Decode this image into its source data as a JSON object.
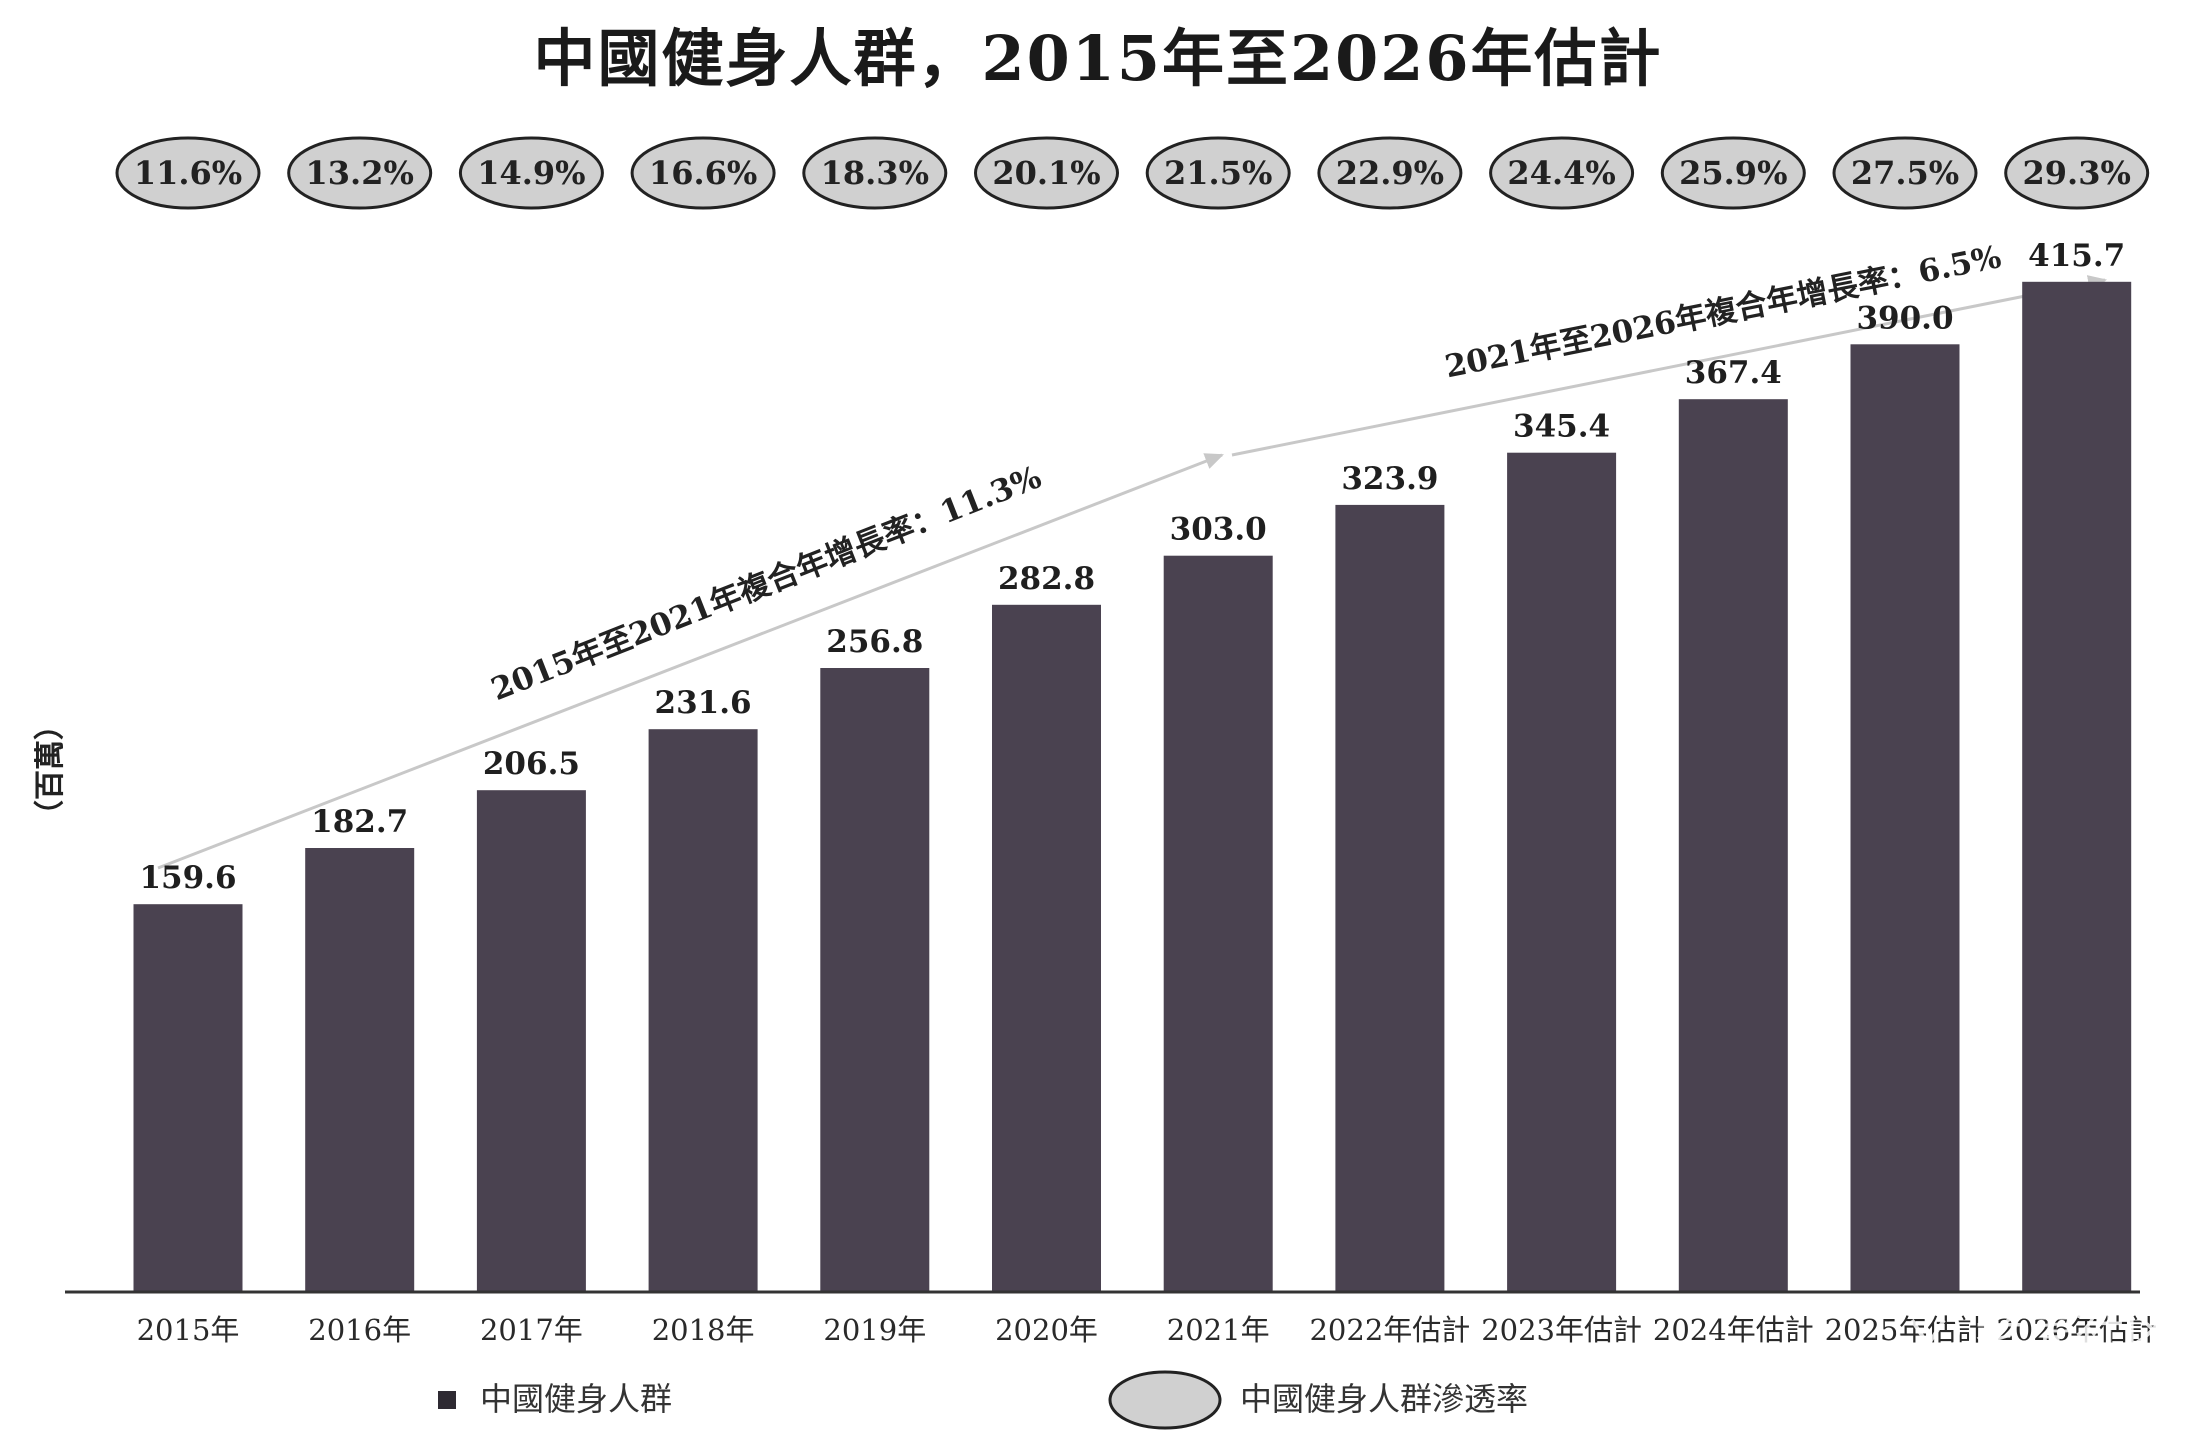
{
  "chart_data": {
    "type": "bar",
    "title": "中國健身人群，2015年至2026年估計",
    "ylabel": "（百萬）",
    "categories": [
      "2015年",
      "2016年",
      "2017年",
      "2018年",
      "2019年",
      "2020年",
      "2021年",
      "2022年估計",
      "2023年估計",
      "2024年估計",
      "2025年估計",
      "2026年估計"
    ],
    "series": [
      {
        "name": "中國健身人群",
        "values": [
          159.6,
          182.7,
          206.5,
          231.6,
          256.8,
          282.8,
          303.0,
          323.9,
          345.4,
          367.4,
          390.0,
          415.7
        ]
      }
    ],
    "value_labels": [
      "159.6",
      "182.7",
      "206.5",
      "231.6",
      "256.8",
      "282.8",
      "303.0",
      "323.9",
      "345.4",
      "367.4",
      "390.0",
      "415.7"
    ],
    "penetration": {
      "name": "中國健身人群滲透率",
      "labels": [
        "11.6%",
        "13.2%",
        "14.9%",
        "16.6%",
        "18.3%",
        "20.1%",
        "21.5%",
        "22.9%",
        "24.4%",
        "25.9%",
        "27.5%",
        "29.3%"
      ]
    },
    "annotations": [
      {
        "text": "2015年至2021年複合年增長率：11.3%"
      },
      {
        "text": "2021年至2026年複合年增長率：6.5%"
      }
    ],
    "ylim": [
      0,
      430
    ],
    "grid": false,
    "legend_placement": "bottom"
  },
  "colors": {
    "bar": "#4a4250",
    "ellipse_fill": "#d0d0d0",
    "ellipse_stroke": "#222222",
    "arrow": "#c8c8c8",
    "axis": "#333333"
  },
  "watermark": {
    "line1": "老虎社区",
    "line2": "@美港股观察社",
    "icon": "tiger-logo-icon"
  }
}
